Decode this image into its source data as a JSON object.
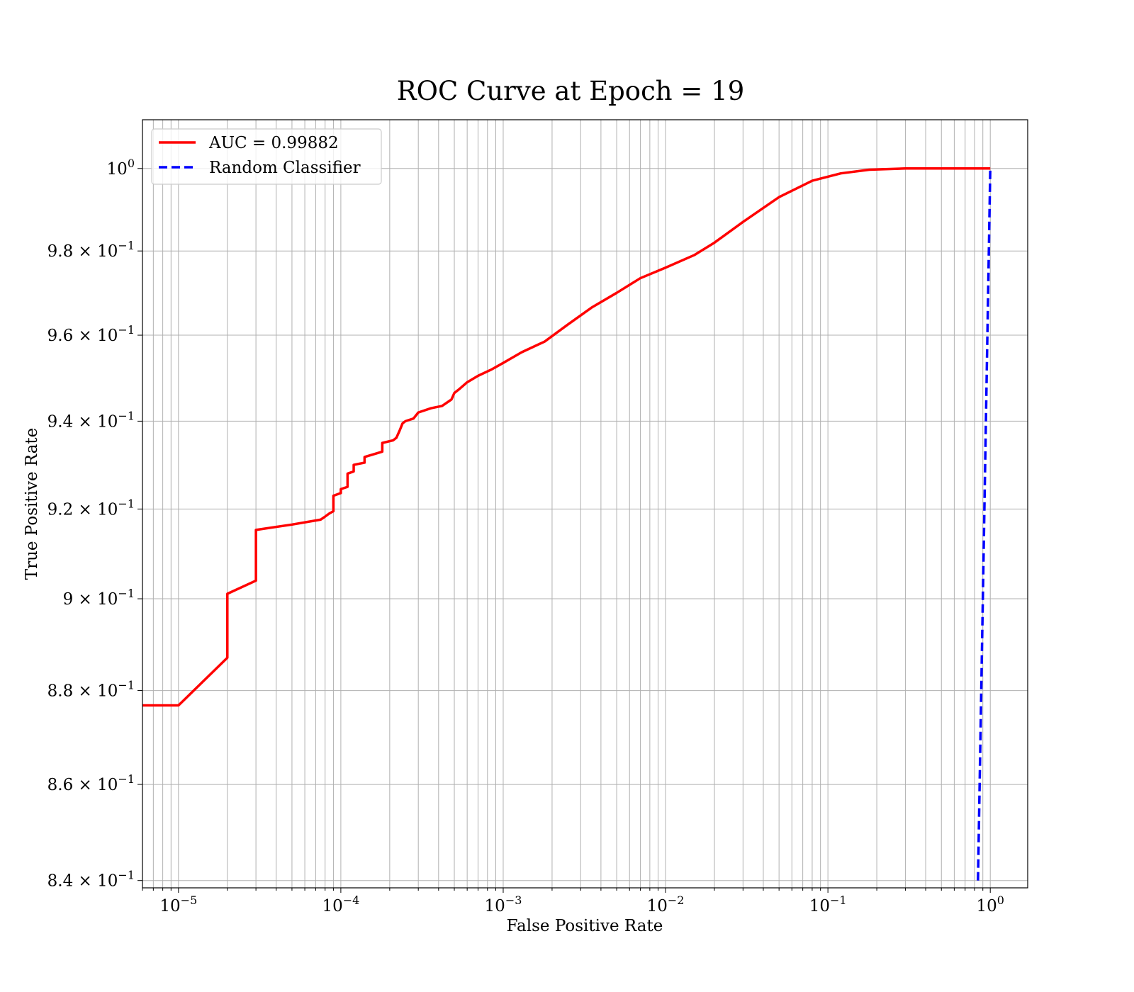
{
  "chart_data": {
    "type": "line",
    "title": "ROC Curve at Epoch = 19",
    "xlabel": "False Positive Rate",
    "ylabel": "True Positive Rate",
    "x_scale": "log",
    "y_scale": "log",
    "xlim": [
      6e-06,
      1.7
    ],
    "ylim": [
      0.8385,
      1.012
    ],
    "grid": "both",
    "legend_position": "upper-left",
    "x_ticks": [
      {
        "value": 1e-05,
        "base": "10",
        "exp": "−5"
      },
      {
        "value": 0.0001,
        "base": "10",
        "exp": "−4"
      },
      {
        "value": 0.001,
        "base": "10",
        "exp": "−3"
      },
      {
        "value": 0.01,
        "base": "10",
        "exp": "−2"
      },
      {
        "value": 0.1,
        "base": "10",
        "exp": "−1"
      },
      {
        "value": 1,
        "base": "10",
        "exp": "0"
      }
    ],
    "y_ticks": [
      {
        "value": 1.0,
        "base": "10",
        "exp": "0"
      },
      {
        "value": 0.98,
        "base": "9.8 × 10",
        "exp": "−1"
      },
      {
        "value": 0.96,
        "base": "9.6 × 10",
        "exp": "−1"
      },
      {
        "value": 0.94,
        "base": "9.4 × 10",
        "exp": "−1"
      },
      {
        "value": 0.92,
        "base": "9.2 × 10",
        "exp": "−1"
      },
      {
        "value": 0.9,
        "base": "9 × 10",
        "exp": "−1"
      },
      {
        "value": 0.88,
        "base": "8.8 × 10",
        "exp": "−1"
      },
      {
        "value": 0.86,
        "base": "8.6 × 10",
        "exp": "−1"
      },
      {
        "value": 0.84,
        "base": "8.4 × 10",
        "exp": "−1"
      }
    ],
    "series": [
      {
        "name": "AUC = 0.99882",
        "color": "#ff0000",
        "style": "solid",
        "x": [
          6e-06,
          1e-05,
          2e-05,
          2e-05,
          3e-05,
          3e-05,
          5e-05,
          7.5e-05,
          8e-05,
          8.5e-05,
          9e-05,
          9e-05,
          0.0001,
          0.0001,
          0.00011,
          0.00011,
          0.00012,
          0.00012,
          0.00014,
          0.00014,
          0.00018,
          0.00018,
          0.00021,
          0.00022,
          0.00023,
          0.00024,
          0.00025,
          0.00028,
          0.0003,
          0.00036,
          0.00042,
          0.00048,
          0.0005,
          0.00054,
          0.0006,
          0.0007,
          0.00085,
          0.001,
          0.0013,
          0.0018,
          0.0025,
          0.0035,
          0.005,
          0.007,
          0.01,
          0.015,
          0.02,
          0.03,
          0.05,
          0.08,
          0.12,
          0.18,
          0.3,
          0.5,
          1
        ],
        "y": [
          0.8768,
          0.8768,
          0.8871,
          0.9011,
          0.904,
          0.9153,
          0.9165,
          0.9176,
          0.9183,
          0.919,
          0.9195,
          0.923,
          0.9236,
          0.9245,
          0.925,
          0.928,
          0.9285,
          0.93,
          0.9305,
          0.9318,
          0.933,
          0.935,
          0.9356,
          0.9362,
          0.9378,
          0.9395,
          0.94,
          0.9406,
          0.942,
          0.943,
          0.9435,
          0.945,
          0.9465,
          0.9475,
          0.949,
          0.9505,
          0.952,
          0.9535,
          0.956,
          0.9585,
          0.9625,
          0.9665,
          0.97,
          0.9735,
          0.976,
          0.979,
          0.982,
          0.987,
          0.993,
          0.997,
          0.9988,
          0.9997,
          1.0,
          1.0,
          1.0
        ]
      },
      {
        "name": "Random Classifier",
        "color": "#0000ff",
        "style": "dashed",
        "x": [
          0.84,
          1
        ],
        "y": [
          0.84,
          1
        ]
      }
    ]
  }
}
